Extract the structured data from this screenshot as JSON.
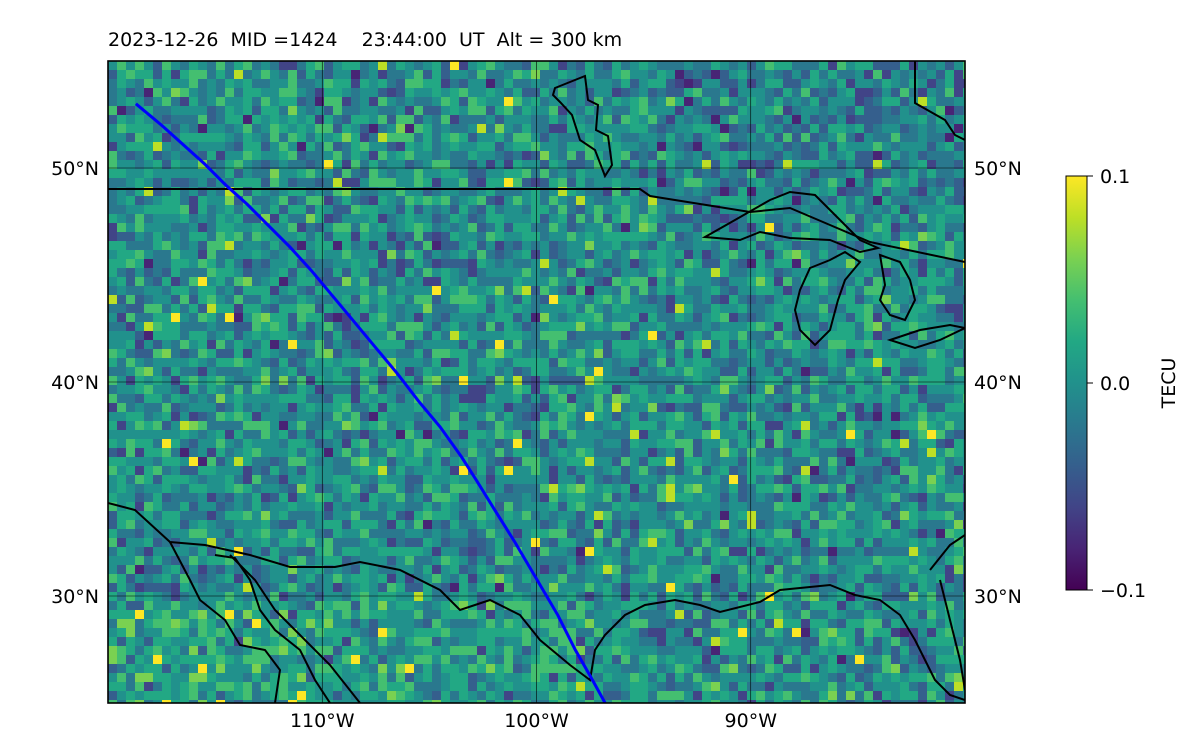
{
  "title": "2023-12-26  MID =1424    23:44:00  UT  Alt = 300 km",
  "map": {
    "lon_range": [
      -120,
      -80
    ],
    "lat_range": [
      25,
      55
    ],
    "grid": true,
    "field": "TEC perturbation (noisy, mostly near 0)",
    "lat_ticks": [
      {
        "value": 50,
        "label": "50°N"
      },
      {
        "value": 40,
        "label": "40°N"
      },
      {
        "value": 30,
        "label": "30°N"
      }
    ],
    "lon_ticks": [
      {
        "value": -110,
        "label": "110°W"
      },
      {
        "value": -100,
        "label": "100°W"
      },
      {
        "value": -90,
        "label": "90°W"
      }
    ],
    "track": {
      "color": "#0000ff",
      "points_lonlat": [
        [
          -118.7,
          53.0
        ],
        [
          -117.5,
          52.0
        ],
        [
          -116.5,
          51.1
        ],
        [
          -115.5,
          50.2
        ],
        [
          -114.5,
          49.2
        ],
        [
          -113.5,
          48.3
        ],
        [
          -112.5,
          47.3
        ],
        [
          -111.5,
          46.3
        ],
        [
          -110.5,
          45.2
        ],
        [
          -109.5,
          44.0
        ],
        [
          -108.5,
          42.8
        ],
        [
          -107.5,
          41.6
        ],
        [
          -106.5,
          40.4
        ],
        [
          -105.5,
          39.1
        ],
        [
          -104.5,
          37.9
        ],
        [
          -103.5,
          36.5
        ],
        [
          -102.8,
          35.4
        ],
        [
          -102,
          34.1
        ],
        [
          -101,
          32.5
        ],
        [
          -100,
          30.8
        ],
        [
          -99,
          29.1
        ],
        [
          -98.2,
          27.5
        ],
        [
          -97.4,
          26.1
        ],
        [
          -96.8,
          25.0
        ]
      ]
    }
  },
  "colorbar": {
    "label": "TECU",
    "min": -0.1,
    "max": 0.1,
    "ticks": [
      {
        "value": 0.1,
        "label": "0.1"
      },
      {
        "value": 0.0,
        "label": "0.0"
      },
      {
        "value": -0.1,
        "label": "−0.1"
      }
    ]
  }
}
